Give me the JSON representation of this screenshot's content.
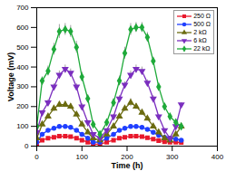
{
  "chart_data": {
    "type": "line",
    "x_label": "Time (h)",
    "y_label": "Voltage (mV)",
    "xlim": [
      0,
      400
    ],
    "xticks": [
      0,
      100,
      200,
      300,
      400
    ],
    "ylim": [
      0,
      700
    ],
    "yticks": [
      0,
      100,
      200,
      300,
      400,
      500,
      600,
      700
    ],
    "legend": "top-right",
    "x": [
      0,
      12,
      25,
      38,
      50,
      63,
      75,
      88,
      100,
      113,
      125,
      140,
      155,
      170,
      183,
      195,
      208,
      220,
      233,
      245,
      258,
      270,
      283,
      295,
      308,
      320
    ],
    "series": [
      {
        "name": "250 Ω",
        "color": "#e8192c",
        "marker": "square",
        "values": [
          10,
          30,
          40,
          45,
          50,
          50,
          48,
          40,
          30,
          20,
          10,
          10,
          20,
          30,
          40,
          45,
          50,
          50,
          48,
          42,
          35,
          28,
          22,
          20,
          20,
          18
        ],
        "errors": [
          0,
          3,
          3,
          4,
          4,
          4,
          4,
          3,
          3,
          2,
          2,
          2,
          2,
          3,
          3,
          4,
          4,
          4,
          4,
          3,
          3,
          3,
          2,
          2,
          2,
          2
        ]
      },
      {
        "name": "500 Ω",
        "color": "#1f3fff",
        "marker": "circle",
        "values": [
          20,
          60,
          80,
          90,
          100,
          100,
          95,
          80,
          60,
          40,
          20,
          20,
          40,
          60,
          80,
          90,
          100,
          100,
          95,
          85,
          70,
          55,
          45,
          40,
          35,
          30
        ],
        "errors": [
          0,
          5,
          6,
          6,
          8,
          8,
          8,
          6,
          5,
          4,
          3,
          3,
          4,
          5,
          6,
          6,
          8,
          8,
          8,
          6,
          5,
          5,
          4,
          4,
          3,
          3
        ]
      },
      {
        "name": "2 kΩ",
        "color": "#6b6b10",
        "marker": "triangle-up",
        "values": [
          40,
          110,
          150,
          190,
          210,
          210,
          200,
          160,
          110,
          70,
          40,
          30,
          60,
          100,
          150,
          190,
          220,
          200,
          170,
          140,
          100,
          70,
          40,
          30,
          60,
          100
        ],
        "errors": [
          0,
          10,
          10,
          15,
          15,
          15,
          15,
          10,
          10,
          8,
          5,
          5,
          8,
          10,
          10,
          15,
          20,
          15,
          15,
          10,
          10,
          8,
          5,
          5,
          5,
          8
        ]
      },
      {
        "name": "6 kΩ",
        "color": "#7b2fbf",
        "marker": "triangle-down",
        "values": [
          70,
          170,
          220,
          300,
          360,
          390,
          370,
          300,
          200,
          120,
          60,
          40,
          80,
          150,
          240,
          310,
          360,
          390,
          380,
          320,
          240,
          150,
          80,
          40,
          100,
          210
        ],
        "errors": [
          0,
          10,
          15,
          15,
          20,
          20,
          20,
          15,
          15,
          10,
          5,
          5,
          8,
          10,
          15,
          15,
          20,
          20,
          20,
          15,
          15,
          10,
          8,
          5,
          8,
          10
        ]
      },
      {
        "name": "22 kΩ",
        "color": "#1faa3a",
        "marker": "diamond",
        "values": [
          100,
          330,
          380,
          490,
          580,
          590,
          580,
          500,
          350,
          240,
          110,
          60,
          120,
          220,
          330,
          470,
          590,
          600,
          600,
          550,
          430,
          300,
          200,
          150,
          120,
          100
        ],
        "errors": [
          0,
          20,
          25,
          30,
          35,
          30,
          30,
          30,
          25,
          20,
          10,
          10,
          15,
          20,
          25,
          30,
          30,
          25,
          25,
          25,
          20,
          20,
          15,
          15,
          10,
          10
        ]
      }
    ]
  }
}
